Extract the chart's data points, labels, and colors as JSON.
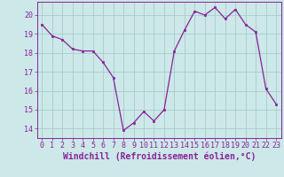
{
  "x": [
    0,
    1,
    2,
    3,
    4,
    5,
    6,
    7,
    8,
    9,
    10,
    11,
    12,
    13,
    14,
    15,
    16,
    17,
    18,
    19,
    20,
    21,
    22,
    23
  ],
  "y": [
    19.5,
    18.9,
    18.7,
    18.2,
    18.1,
    18.1,
    17.5,
    16.7,
    13.9,
    14.3,
    14.9,
    14.4,
    15.0,
    18.1,
    19.2,
    20.2,
    20.0,
    20.4,
    19.8,
    20.3,
    19.5,
    19.1,
    16.1,
    15.3
  ],
  "line_color": "#882299",
  "marker_color": "#882299",
  "bg_color": "#cce8e8",
  "grid_color": "#aacccc",
  "xlabel": "Windchill (Refroidissement éolien,°C)",
  "ylim": [
    13.5,
    20.7
  ],
  "xlim": [
    -0.5,
    23.5
  ],
  "yticks": [
    14,
    15,
    16,
    17,
    18,
    19,
    20
  ],
  "xticks": [
    0,
    1,
    2,
    3,
    4,
    5,
    6,
    7,
    8,
    9,
    10,
    11,
    12,
    13,
    14,
    15,
    16,
    17,
    18,
    19,
    20,
    21,
    22,
    23
  ],
  "tick_label_fontsize": 6.0,
  "xlabel_fontsize": 7.0
}
